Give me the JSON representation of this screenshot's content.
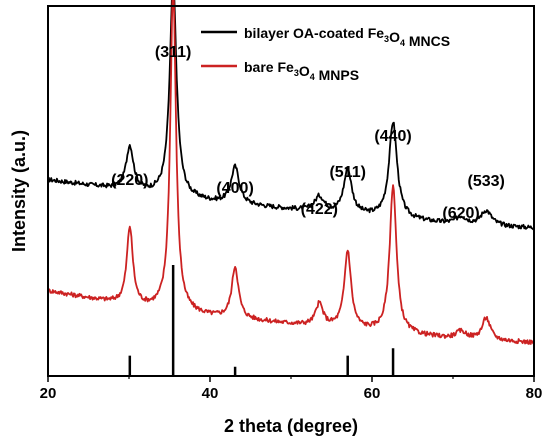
{
  "chart_data": {
    "type": "line",
    "xlabel": "2 theta (degree)",
    "ylabel": "Intensity (a.u.)",
    "xlim": [
      20,
      80
    ],
    "x_ticks": [
      20,
      40,
      60,
      80
    ],
    "y_ticks": [],
    "grid": false,
    "legend_position": "top-right",
    "legend": [
      {
        "parts": [
          {
            "text": "bilayer OA-coated Fe",
            "sub": false
          },
          {
            "text": "3",
            "sub": true
          },
          {
            "text": "O",
            "sub": false
          },
          {
            "text": "4",
            "sub": true
          },
          {
            "text": " MNCS",
            "sub": false
          }
        ],
        "color": "#000000"
      },
      {
        "parts": [
          {
            "text": "bare Fe",
            "sub": false
          },
          {
            "text": "3",
            "sub": true
          },
          {
            "text": "O",
            "sub": false
          },
          {
            "text": "4",
            "sub": true
          },
          {
            "text": " MNPS",
            "sub": false
          }
        ],
        "color": "#cc2222"
      }
    ],
    "series": [
      {
        "color": "#000000",
        "baseline": [
          [
            20,
            0.53
          ],
          [
            30,
            0.5
          ],
          [
            40,
            0.47
          ],
          [
            50,
            0.45
          ],
          [
            60,
            0.43
          ],
          [
            70,
            0.41
          ],
          [
            80,
            0.4
          ]
        ],
        "peaks": [
          [
            30.1,
            0.12,
            0.55
          ],
          [
            35.45,
            0.58,
            0.5
          ],
          [
            43.1,
            0.1,
            0.6
          ],
          [
            53.5,
            0.04,
            0.7
          ],
          [
            57.0,
            0.12,
            0.6
          ],
          [
            62.6,
            0.26,
            0.6
          ],
          [
            71.0,
            0.02,
            0.8
          ],
          [
            74.1,
            0.04,
            0.8
          ]
        ]
      },
      {
        "color": "#cc2222",
        "baseline": [
          [
            20,
            0.23
          ],
          [
            30,
            0.19
          ],
          [
            40,
            0.16
          ],
          [
            50,
            0.14
          ],
          [
            60,
            0.12
          ],
          [
            70,
            0.1
          ],
          [
            80,
            0.09
          ]
        ],
        "peaks": [
          [
            30.1,
            0.21,
            0.45
          ],
          [
            35.45,
            0.88,
            0.42
          ],
          [
            43.1,
            0.14,
            0.5
          ],
          [
            53.5,
            0.06,
            0.55
          ],
          [
            57.0,
            0.21,
            0.5
          ],
          [
            62.6,
            0.4,
            0.5
          ],
          [
            71.0,
            0.02,
            0.8
          ],
          [
            74.1,
            0.06,
            0.6
          ]
        ]
      }
    ],
    "reference_lines": [
      {
        "x": 30.1,
        "height": 0.055
      },
      {
        "x": 35.45,
        "height": 0.3
      },
      {
        "x": 43.1,
        "height": 0.025
      },
      {
        "x": 57.0,
        "height": 0.055
      },
      {
        "x": 62.6,
        "height": 0.075
      }
    ],
    "peak_labels": [
      {
        "text": "(220)",
        "x": 30.1
      },
      {
        "text": "(311)",
        "x": 35.45
      },
      {
        "text": "(400)",
        "x": 43.1
      },
      {
        "text": "(422)",
        "x": 53.5
      },
      {
        "text": "(511)",
        "x": 57.0
      },
      {
        "text": "(440)",
        "x": 62.6
      },
      {
        "text": "(620)",
        "x": 71.0
      },
      {
        "text": "(533)",
        "x": 74.1
      }
    ]
  }
}
